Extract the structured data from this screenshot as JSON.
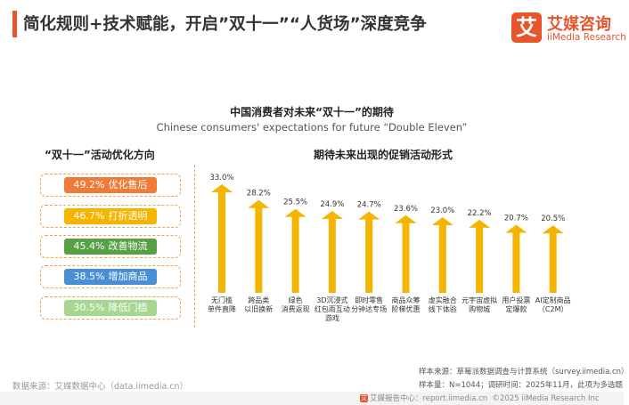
{
  "header": {
    "title": "简化规则+技术赋能，开启”双十一”“人货场”深度竞争"
  },
  "brand": {
    "glyph": "艾",
    "name_cn": "艾媒咨询",
    "name_en": "iiMedia Research",
    "color": "#e8542c"
  },
  "chart_title": "中国消费者对未来“双十一”的期待",
  "chart_subtitle": "Chinese consumers' expectations for future “Double Eleven”",
  "left_panel": {
    "heading": "“双十一”活动优化方向",
    "items": [
      {
        "percent": "49.2%",
        "label": "优化售后",
        "color": "#f07b38"
      },
      {
        "percent": "46.7%",
        "label": "打折透明",
        "color": "#f5b400"
      },
      {
        "percent": "45.4%",
        "label": "改善物流",
        "color": "#57a046"
      },
      {
        "percent": "38.5%",
        "label": "增加商品",
        "color": "#4a8fd6"
      },
      {
        "percent": "30.5%",
        "label": "降低门槛",
        "color": "#a6d690"
      }
    ]
  },
  "chart_data": {
    "type": "bar",
    "title": "期待未来出现的促销活动形式",
    "categories": [
      [
        "无门槛",
        "单件直降"
      ],
      [
        "跨品类",
        "以旧换新"
      ],
      [
        "绿色",
        "消费返现"
      ],
      [
        "3D沉浸式",
        "红包雨互动",
        "游戏"
      ],
      [
        "即时零售",
        "分钟达专场"
      ],
      [
        "商品众筹",
        "阶梯优惠"
      ],
      [
        "虚实融合",
        "线下体验"
      ],
      [
        "元宇宙虚拟",
        "购物城"
      ],
      [
        "用户投票",
        "定爆款"
      ],
      [
        "AI定制商品",
        "（C2M）"
      ]
    ],
    "values": [
      33.0,
      28.2,
      25.5,
      24.9,
      24.7,
      23.6,
      23.0,
      22.2,
      20.7,
      20.5
    ],
    "value_labels": [
      "33.0%",
      "28.2%",
      "25.5%",
      "24.9%",
      "24.7%",
      "23.6%",
      "23.0%",
      "22.2%",
      "20.7%",
      "20.5%"
    ],
    "unit": "%",
    "ylim": [
      0,
      35
    ],
    "bar_color": "#f5b400"
  },
  "footer": {
    "data_source": "数据来源：艾媒数据中心（data.iimedia.cn）",
    "sample_source": "样本来源：草莓派数据调查与计算系统（survey.iimedia.cn）",
    "sample_size": "样本量：N=1044；调研时间：2025年11月，此项为多选题",
    "copyright_prefix": "艾媒报告中心：report.iimedia.cn",
    "copyright": "©2025  iiMedia Research  Inc"
  }
}
